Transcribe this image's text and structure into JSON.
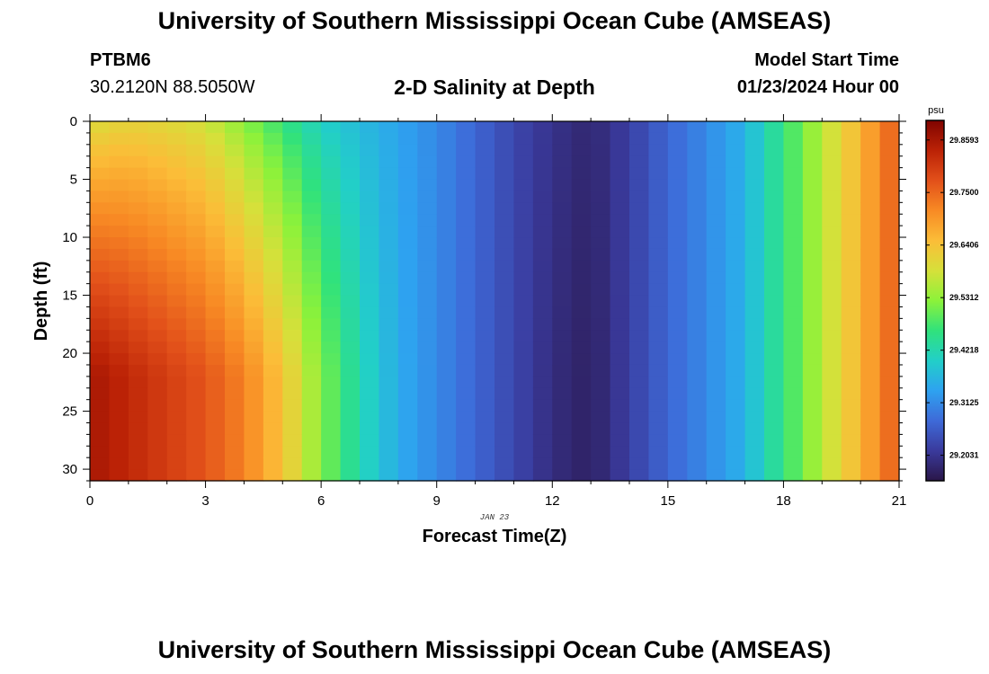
{
  "header": {
    "title": "University of Southern Mississippi Ocean Cube (AMSEAS)",
    "station_id": "PTBM6",
    "coordinates": "30.2120N  88.5050W",
    "subtitle": "2-D Salinity at Depth",
    "model_start_label": "Model Start Time",
    "model_start_value": "01/23/2024 Hour 00"
  },
  "footer": {
    "title": "University of Southern Mississippi Ocean Cube (AMSEAS)"
  },
  "chart_data": {
    "type": "heatmap",
    "title": "2-D Salinity at Depth",
    "xlabel": "Forecast Time(Z)",
    "ylabel": "Depth (ft)",
    "date_label": "JAN 23",
    "xlim": [
      0,
      21
    ],
    "ylim": [
      0,
      31
    ],
    "x_ticks": [
      0,
      3,
      6,
      9,
      12,
      15,
      18,
      21
    ],
    "y_ticks": [
      0,
      5,
      10,
      15,
      20,
      25,
      30
    ],
    "x_step_hours": 0.5,
    "colorbar": {
      "unit": "psu",
      "min": 29.15,
      "max": 29.9,
      "tick_values": [
        29.2031,
        29.3125,
        29.4218,
        29.5312,
        29.6406,
        29.75,
        29.8593
      ],
      "tick_labels": [
        "29.2031",
        "29.3125",
        "29.4218",
        "29.5312",
        "29.6406",
        "29.7500",
        "29.8593"
      ],
      "stops": [
        "#2a1648",
        "#3a3a9c",
        "#3e6ad8",
        "#2ea2f0",
        "#22cfc8",
        "#30e27c",
        "#8cf23a",
        "#d6e03a",
        "#fbbd38",
        "#f88a24",
        "#e2501a",
        "#bb2206",
        "#800400"
      ]
    },
    "field_description": "Salinity (psu) vs forecast hour (0-21) and depth (0-31 ft); saltier at depth early in the forecast, fresh minimum around hour 12-13, rising again toward hour 21",
    "salinity_profile": {
      "hours": [
        0,
        1,
        2,
        3,
        4,
        5,
        6,
        7,
        8,
        9,
        10,
        11,
        12,
        13,
        14,
        15,
        16,
        17,
        18,
        19,
        20,
        21
      ],
      "surface_psu": [
        29.59,
        29.61,
        29.6,
        29.58,
        29.52,
        29.46,
        29.4,
        29.37,
        29.34,
        29.31,
        29.27,
        29.23,
        29.2,
        29.18,
        29.22,
        29.27,
        29.31,
        29.36,
        29.46,
        29.56,
        29.66,
        29.77
      ],
      "bottom_psu": [
        29.86,
        29.83,
        29.8,
        29.77,
        29.72,
        29.64,
        29.52,
        29.42,
        29.35,
        29.31,
        29.27,
        29.23,
        29.19,
        29.17,
        29.22,
        29.27,
        29.31,
        29.36,
        29.46,
        29.56,
        29.66,
        29.77
      ]
    }
  }
}
